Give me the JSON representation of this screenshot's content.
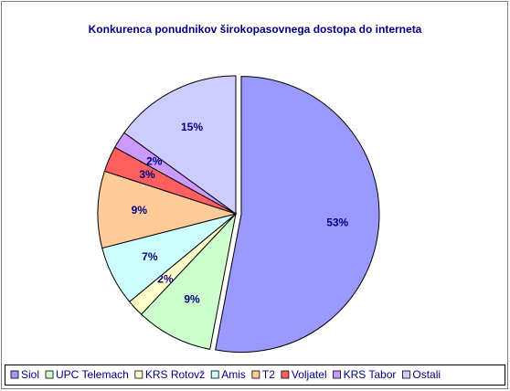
{
  "chart_data": {
    "type": "pie",
    "title": "Konkurenca ponudnikov širokopasovnega dostopa do interneta",
    "categories": [
      "Siol",
      "UPC Telemach",
      "KRS Rotovž",
      "Amis",
      "T2",
      "Voljatel",
      "KRS Tabor",
      "Ostali"
    ],
    "values": [
      53,
      9,
      2,
      7,
      9,
      3,
      2,
      15
    ],
    "value_labels": [
      "53%",
      "9%",
      "2%",
      "7%",
      "9%",
      "3%",
      "2%",
      "15%"
    ],
    "colors": [
      "#9999ff",
      "#ccffcc",
      "#ffffcc",
      "#ccffff",
      "#ffcc99",
      "#ff5f5f",
      "#cc99ff",
      "#ccccff"
    ],
    "legend": "bottom"
  }
}
